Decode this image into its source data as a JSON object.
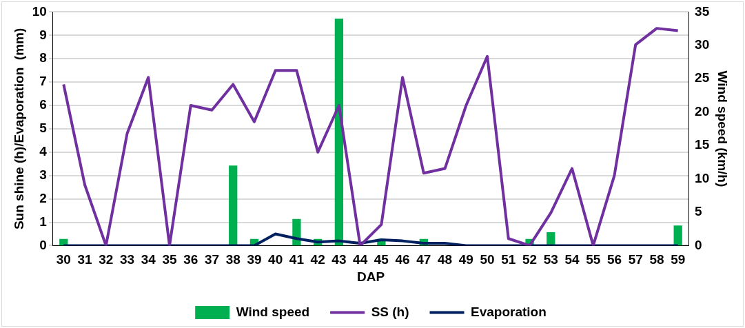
{
  "chart_data": {
    "type": "bar",
    "xlabel": "DAP",
    "ylabel": "Sun shine (h)/Evaporation  (mm)",
    "y2label": "Wind speed (km/h)",
    "categories": [
      "30",
      "31",
      "32",
      "33",
      "34",
      "35",
      "36",
      "37",
      "38",
      "39",
      "40",
      "41",
      "42",
      "43",
      "44",
      "45",
      "46",
      "47",
      "48",
      "49",
      "50",
      "51",
      "52",
      "53",
      "54",
      "55",
      "56",
      "57",
      "58",
      "59"
    ],
    "series": [
      {
        "name": "Wind speed",
        "axis": "y2",
        "color": "#00b050",
        "values": [
          1,
          0,
          0,
          0,
          0,
          0,
          0,
          0,
          12,
          1,
          0,
          4,
          1,
          34,
          0,
          1,
          0,
          1,
          0,
          0,
          0,
          0,
          1,
          2,
          0,
          0,
          0,
          0,
          0,
          3
        ]
      },
      {
        "name": "SS (h)",
        "type": "line",
        "color": "#7030a0",
        "values": [
          6.9,
          2.6,
          0,
          4.8,
          7.2,
          0,
          6.0,
          5.8,
          6.9,
          5.3,
          7.5,
          7.5,
          4.0,
          6.0,
          0,
          0.9,
          7.2,
          3.1,
          3.3,
          6.0,
          8.1,
          0.3,
          0,
          1.4,
          3.3,
          0,
          3.0,
          8.6,
          9.3,
          9.2
        ]
      },
      {
        "name": "Evaporation",
        "type": "line",
        "color": "#002060",
        "values": [
          0,
          0,
          0,
          0,
          0,
          0,
          0,
          0,
          0,
          0,
          0.5,
          0.3,
          0.15,
          0.2,
          0.1,
          0.25,
          0.2,
          0.1,
          0.1,
          0,
          0,
          0,
          0,
          0,
          0,
          0,
          0,
          0,
          0,
          0
        ]
      }
    ],
    "ylim": [
      0,
      10
    ],
    "yticks": [
      0,
      1,
      2,
      3,
      4,
      5,
      6,
      7,
      8,
      9,
      10
    ],
    "y2lim": [
      0,
      35
    ],
    "y2ticks": [
      0,
      5,
      10,
      15,
      20,
      25,
      30,
      35
    ],
    "grid": "y",
    "legend": "bottom",
    "marker": "none",
    "line_style": "solid"
  }
}
